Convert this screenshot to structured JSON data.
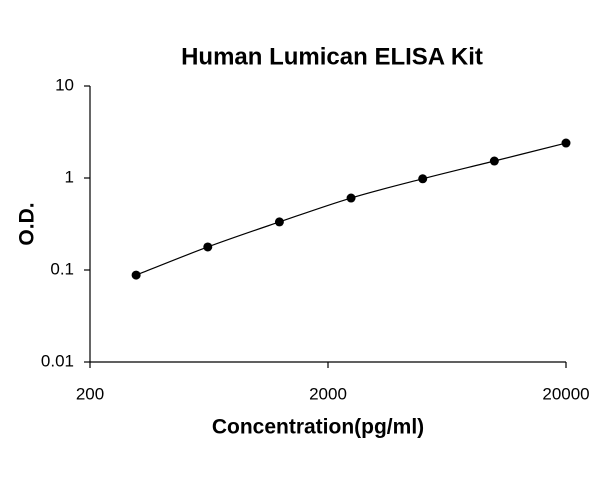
{
  "chart_data": {
    "type": "scatter",
    "title": "Human Lumican ELISA Kit",
    "x_label": "Concentration(pg/ml)",
    "y_label": "O.D.",
    "x": [
      312.5,
      625,
      1250,
      2500,
      5000,
      10000,
      20000
    ],
    "values": [
      0.088,
      0.178,
      0.333,
      0.606,
      0.98,
      1.53,
      2.4
    ],
    "color": "#000000",
    "x_log": true,
    "y_log": true,
    "xlim": [
      200,
      20000
    ],
    "xticks": [
      200,
      2000,
      20000
    ],
    "ylim": [
      0.01,
      10
    ],
    "yticks": [
      0.01,
      0.1,
      1,
      10
    ]
  }
}
